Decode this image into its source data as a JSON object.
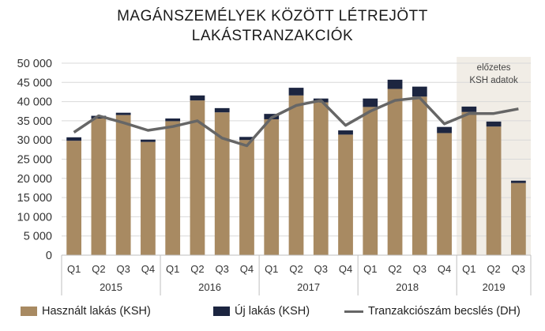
{
  "chart_data": {
    "type": "bar",
    "title_lines": [
      "MAGÁNSZEMÉLYEK KÖZÖTT LÉTREJÖTT",
      "LAKÁSTRANZAKCIÓK"
    ],
    "categories": [
      "Q1",
      "Q2",
      "Q3",
      "Q4",
      "Q1",
      "Q2",
      "Q3",
      "Q4",
      "Q1",
      "Q2",
      "Q3",
      "Q4",
      "Q1",
      "Q2",
      "Q3",
      "Q4",
      "Q1",
      "Q2",
      "Q3"
    ],
    "years": [
      {
        "label": "2015",
        "count": 4
      },
      {
        "label": "2016",
        "count": 4
      },
      {
        "label": "2017",
        "count": 4
      },
      {
        "label": "2018",
        "count": 4
      },
      {
        "label": "2019",
        "count": 3
      }
    ],
    "series": [
      {
        "name": "Használt lakás (KSH)",
        "kind": "stacked-bar",
        "color": "#a88a62",
        "values": [
          29800,
          35600,
          36500,
          29500,
          34900,
          40300,
          37200,
          30000,
          35400,
          41600,
          39800,
          31400,
          38600,
          43300,
          41300,
          31800,
          37300,
          33500,
          18800
        ]
      },
      {
        "name": "Új lakás (KSH)",
        "kind": "stacked-bar",
        "color": "#1c2540",
        "values": [
          900,
          700,
          600,
          600,
          700,
          1300,
          1100,
          800,
          1400,
          2000,
          1000,
          1100,
          2200,
          2400,
          2600,
          1600,
          1400,
          1300,
          600
        ]
      },
      {
        "name": "Tranzakciószám becslés (DH)",
        "kind": "line",
        "color": "#666666",
        "values": [
          32000,
          36300,
          34500,
          32500,
          33500,
          35000,
          30500,
          28500,
          35800,
          39000,
          40300,
          33800,
          37500,
          40300,
          41000,
          34200,
          36900,
          36900,
          38100
        ]
      }
    ],
    "ylim": [
      0,
      50000
    ],
    "yticks": [
      0,
      5000,
      10000,
      15000,
      20000,
      25000,
      30000,
      35000,
      40000,
      45000,
      50000
    ],
    "ytick_labels": [
      "0",
      "5 000",
      "10 000",
      "15 000",
      "20 000",
      "25 000",
      "30 000",
      "35 000",
      "40 000",
      "45 000",
      "50 000"
    ],
    "grid": true,
    "legend_position": "bottom",
    "annotation": {
      "lines": [
        "előzetes",
        "KSH adatok"
      ],
      "shaded_from_index": 16,
      "shade_color": "#f1ede6"
    }
  }
}
